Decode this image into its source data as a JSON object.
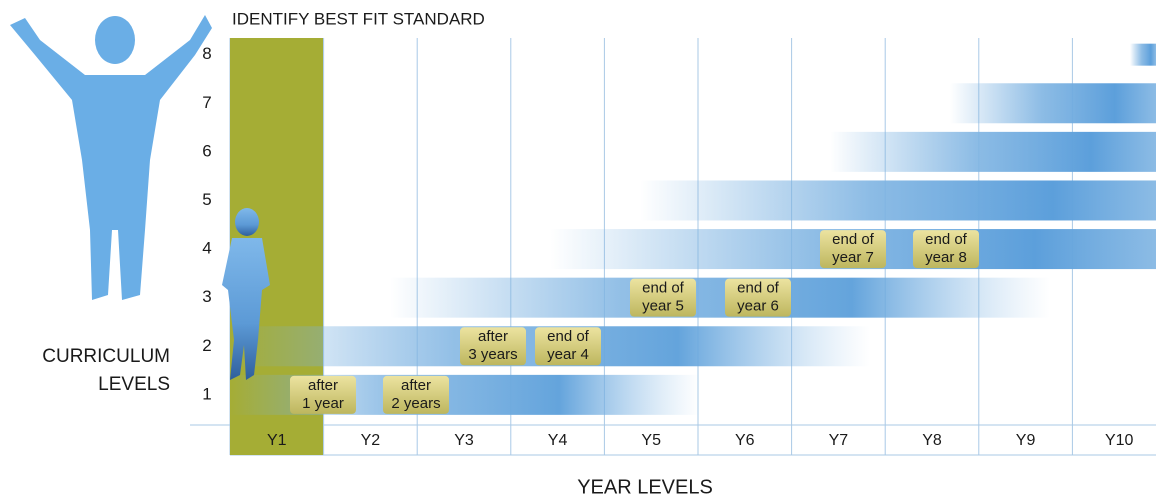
{
  "title": "IDENTIFY BEST FIT STANDARD",
  "y_axis_label": [
    "CURRICULUM",
    "LEVELS"
  ],
  "x_axis_label": "YEAR LEVELS",
  "levels": [
    "1",
    "2",
    "3",
    "4",
    "5",
    "6",
    "7",
    "8"
  ],
  "years": [
    "Y1",
    "Y2",
    "Y3",
    "Y4",
    "Y5",
    "Y6",
    "Y7",
    "Y8",
    "Y9",
    "Y10"
  ],
  "badges": [
    {
      "lines": [
        "after",
        "1 year"
      ]
    },
    {
      "lines": [
        "after",
        "2 years"
      ]
    },
    {
      "lines": [
        "after",
        "3 years"
      ]
    },
    {
      "lines": [
        "end of",
        "year 4"
      ]
    },
    {
      "lines": [
        "end of",
        "year 5"
      ]
    },
    {
      "lines": [
        "end of",
        "year 6"
      ]
    },
    {
      "lines": [
        "end of",
        "year 7"
      ]
    },
    {
      "lines": [
        "end of",
        "year 8"
      ]
    }
  ]
}
